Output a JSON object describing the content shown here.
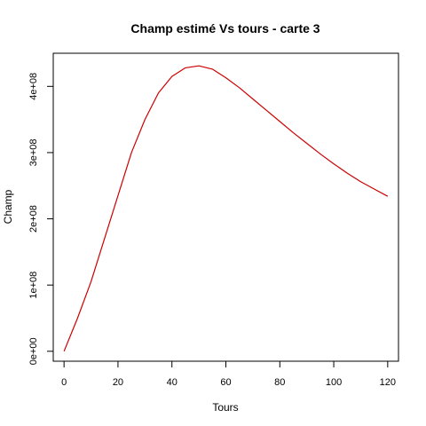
{
  "chart_data": {
    "type": "line",
    "title": "Champ estimé Vs tours - carte 3",
    "xlabel": "Tours",
    "ylabel": "Champ",
    "xlim": [
      -4,
      124
    ],
    "ylim": [
      -15000000,
      450000000
    ],
    "x_ticks": [
      {
        "value": 0,
        "label": "0"
      },
      {
        "value": 20,
        "label": "20"
      },
      {
        "value": 40,
        "label": "40"
      },
      {
        "value": 60,
        "label": "60"
      },
      {
        "value": 80,
        "label": "80"
      },
      {
        "value": 100,
        "label": "100"
      },
      {
        "value": 120,
        "label": "120"
      }
    ],
    "y_ticks": [
      {
        "value": 0,
        "label": "0e+00"
      },
      {
        "value": 100000000,
        "label": "1e+08"
      },
      {
        "value": 200000000,
        "label": "2e+08"
      },
      {
        "value": 300000000,
        "label": "3e+08"
      },
      {
        "value": 400000000,
        "label": "4e+08"
      }
    ],
    "grid": false,
    "legend": "none",
    "series": [
      {
        "color": "#cc0000",
        "points": [
          [
            0,
            0
          ],
          [
            5,
            50000000
          ],
          [
            10,
            105000000
          ],
          [
            15,
            170000000
          ],
          [
            20,
            235000000
          ],
          [
            25,
            300000000
          ],
          [
            30,
            350000000
          ],
          [
            35,
            390000000
          ],
          [
            40,
            415000000
          ],
          [
            45,
            428000000
          ],
          [
            50,
            431000000
          ],
          [
            55,
            426000000
          ],
          [
            60,
            413000000
          ],
          [
            65,
            398000000
          ],
          [
            70,
            381000000
          ],
          [
            75,
            364000000
          ],
          [
            80,
            347000000
          ],
          [
            85,
            330000000
          ],
          [
            90,
            314000000
          ],
          [
            95,
            298000000
          ],
          [
            100,
            283000000
          ],
          [
            105,
            269000000
          ],
          [
            110,
            256000000
          ],
          [
            115,
            245000000
          ],
          [
            120,
            234000000
          ]
        ]
      }
    ]
  }
}
